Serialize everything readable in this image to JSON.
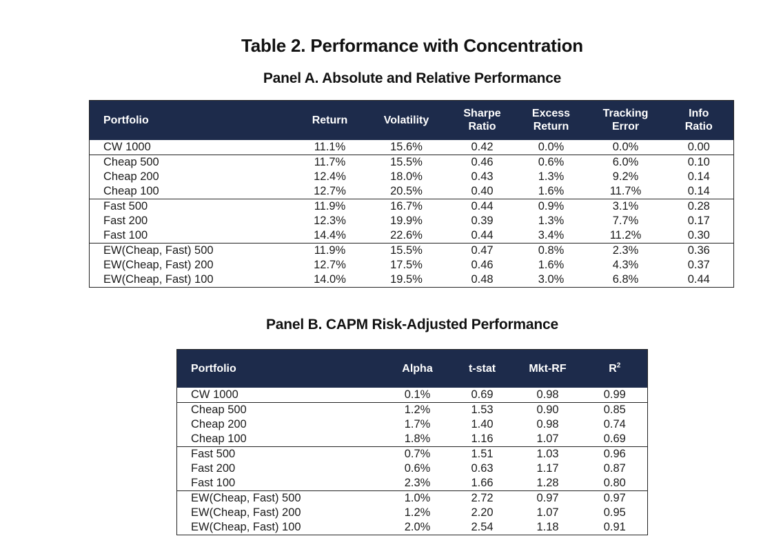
{
  "document": {
    "title": "Table 2. Performance with Concentration"
  },
  "panel_a": {
    "title": "Panel A. Absolute and Relative Performance",
    "headers": [
      [
        "Portfolio"
      ],
      [
        "Return"
      ],
      [
        "Volatility"
      ],
      [
        "Sharpe",
        "Ratio"
      ],
      [
        "Excess",
        "Return"
      ],
      [
        "Tracking",
        "Error"
      ],
      [
        "Info",
        "Ratio"
      ]
    ],
    "rows": [
      [
        "CW 1000",
        "11.1%",
        "15.6%",
        "0.42",
        "0.0%",
        "0.0%",
        "0.00"
      ],
      [
        "Cheap 500",
        "11.7%",
        "15.5%",
        "0.46",
        "0.6%",
        "6.0%",
        "0.10"
      ],
      [
        "Cheap 200",
        "12.4%",
        "18.0%",
        "0.43",
        "1.3%",
        "9.2%",
        "0.14"
      ],
      [
        "Cheap 100",
        "12.7%",
        "20.5%",
        "0.40",
        "1.6%",
        "11.7%",
        "0.14"
      ],
      [
        "Fast 500",
        "11.9%",
        "16.7%",
        "0.44",
        "0.9%",
        "3.1%",
        "0.28"
      ],
      [
        "Fast 200",
        "12.3%",
        "19.9%",
        "0.39",
        "1.3%",
        "7.7%",
        "0.17"
      ],
      [
        "Fast 100",
        "14.4%",
        "22.6%",
        "0.44",
        "3.4%",
        "11.2%",
        "0.30"
      ],
      [
        "EW(Cheap, Fast) 500",
        "11.9%",
        "15.5%",
        "0.47",
        "0.8%",
        "2.3%",
        "0.36"
      ],
      [
        "EW(Cheap, Fast) 200",
        "12.7%",
        "17.5%",
        "0.46",
        "1.6%",
        "4.3%",
        "0.37"
      ],
      [
        "EW(Cheap, Fast) 100",
        "14.0%",
        "19.5%",
        "0.48",
        "3.0%",
        "6.8%",
        "0.44"
      ]
    ]
  },
  "panel_b": {
    "title": "Panel B. CAPM Risk-Adjusted Performance",
    "headers": [
      "Portfolio",
      "Alpha",
      "t-stat",
      "Mkt-RF",
      "R",
      "2"
    ],
    "rows": [
      [
        "CW 1000",
        "0.1%",
        "0.69",
        "0.98",
        "0.99"
      ],
      [
        "Cheap 500",
        "1.2%",
        "1.53",
        "0.90",
        "0.85"
      ],
      [
        "Cheap 200",
        "1.7%",
        "1.40",
        "0.98",
        "0.74"
      ],
      [
        "Cheap 100",
        "1.8%",
        "1.16",
        "1.07",
        "0.69"
      ],
      [
        "Fast 500",
        "0.7%",
        "1.51",
        "1.03",
        "0.96"
      ],
      [
        "Fast 200",
        "0.6%",
        "0.63",
        "1.17",
        "0.87"
      ],
      [
        "Fast 100",
        "2.3%",
        "1.66",
        "1.28",
        "0.80"
      ],
      [
        "EW(Cheap, Fast) 500",
        "1.0%",
        "2.72",
        "0.97",
        "0.97"
      ],
      [
        "EW(Cheap, Fast) 200",
        "1.2%",
        "2.20",
        "1.07",
        "0.95"
      ],
      [
        "EW(Cheap, Fast) 100",
        "2.0%",
        "2.54",
        "1.18",
        "0.91"
      ]
    ]
  }
}
